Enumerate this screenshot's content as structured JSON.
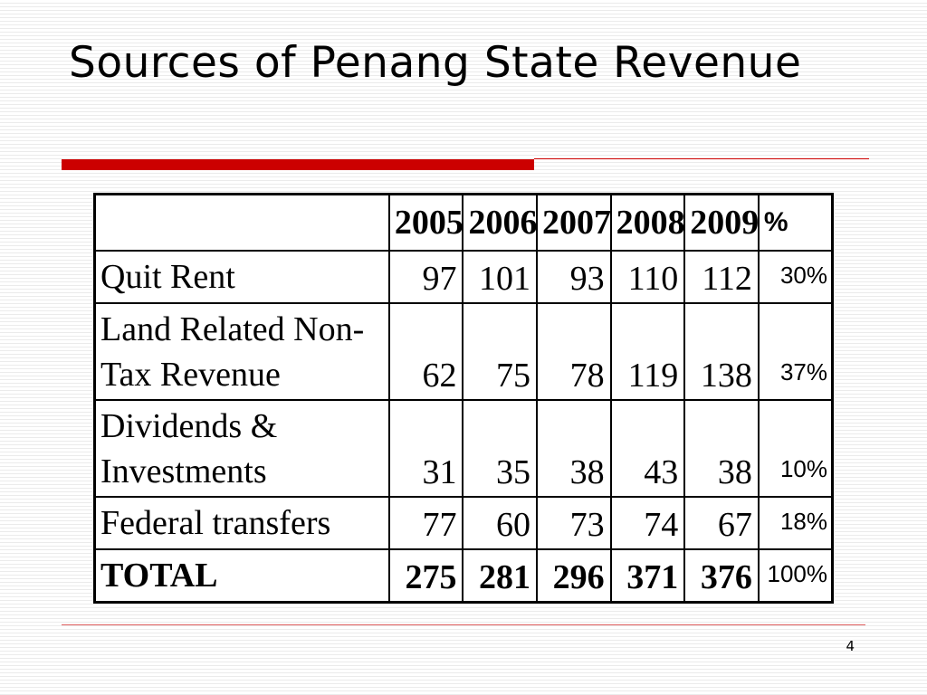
{
  "slide": {
    "title": "Sources of Penang State Revenue",
    "page_number": "4"
  },
  "table": {
    "headers": [
      "",
      "2005",
      "2006",
      "2007",
      "2008",
      "2009",
      "%"
    ],
    "rows": [
      {
        "label": "Quit Rent",
        "values": [
          "97",
          "101",
          "93",
          "110",
          "112"
        ],
        "percent": "30%"
      },
      {
        "label": "Land Related Non-Tax Revenue",
        "values": [
          "62",
          "75",
          "78",
          "119",
          "138"
        ],
        "percent": "37%"
      },
      {
        "label": "Dividends & Investments",
        "values": [
          "31",
          "35",
          "38",
          "43",
          "38"
        ],
        "percent": "10%"
      },
      {
        "label": "Federal transfers",
        "values": [
          "77",
          "60",
          "73",
          "74",
          "67"
        ],
        "percent": "18%"
      },
      {
        "label": "TOTAL",
        "values": [
          "275",
          "281",
          "296",
          "371",
          "376"
        ],
        "percent": "100%"
      }
    ]
  },
  "colors": {
    "accent_red": "#cc0000",
    "text": "#000000",
    "background": "#ffffff"
  }
}
